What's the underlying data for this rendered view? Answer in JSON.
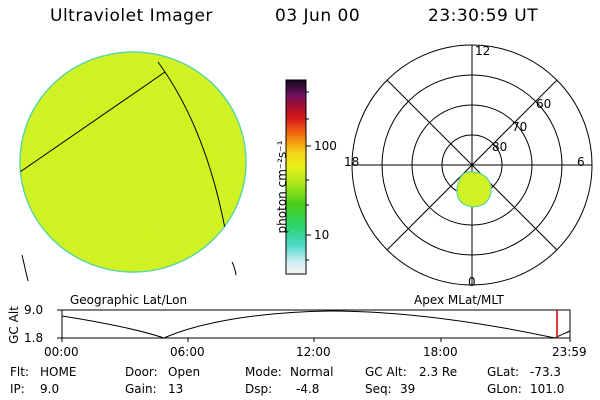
{
  "header": {
    "title": "Ultraviolet Imager",
    "date": "03 Jun 00",
    "time": "23:30:59 UT"
  },
  "colorbar": {
    "unit_label": "photon cm⁻²s⁻¹",
    "tick_labels": [
      "100",
      "10"
    ]
  },
  "left_panel": {
    "caption": "Geographic Lat/Lon",
    "fill_color": "#d4f21c"
  },
  "polar_plot": {
    "caption": "Apex MLat/MLT",
    "mlt_labels": {
      "top": "12",
      "left": "18",
      "right": "6",
      "bottom": "0"
    },
    "mlat_labels": [
      "60",
      "70",
      "80"
    ]
  },
  "altitude_plot": {
    "axis_label": "GC Alt",
    "y_ticks": [
      "9.0",
      "1.8"
    ],
    "x_ticks": [
      "00:00",
      "06:00",
      "12:00",
      "18:00",
      "23:59"
    ]
  },
  "status": {
    "flt": {
      "label": "Flt:",
      "value": "HOME"
    },
    "ip": {
      "label": "IP:",
      "value": "9.0"
    },
    "door": {
      "label": "Door:",
      "value": "Open"
    },
    "gain": {
      "label": "Gain:",
      "value": "13"
    },
    "mode": {
      "label": "Mode:",
      "value": "Normal"
    },
    "dsp": {
      "label": "Dsp:",
      "value": "-4.8"
    },
    "gc_alt": {
      "label": "GC Alt:",
      "value": "2.3 Re"
    },
    "seq": {
      "label": "Seq:",
      "value": "39"
    },
    "glat": {
      "label": "GLat:",
      "value": "-73.3"
    },
    "glon": {
      "label": "GLon:",
      "value": "101.0"
    }
  },
  "colors": {
    "image_fill": "#d4f21c",
    "image_edge": "#59d4a8",
    "marker_line": "#cc0000"
  }
}
